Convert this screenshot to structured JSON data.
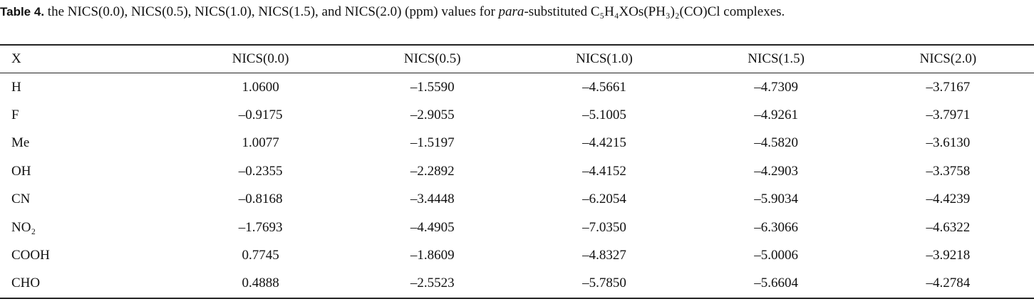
{
  "caption": {
    "label": "Table 4.",
    "text_before": "the NICS(0.0), NICS(0.5), NICS(1.0), NICS(1.5), and NICS(2.0) (ppm) values for ",
    "emphasis": "para",
    "text_after": "-substituted C₅H₄XOs(PH₃)₂(CO)Cl complexes."
  },
  "table": {
    "header": [
      "X",
      "NICS(0.0)",
      "NICS(0.5)",
      "NICS(1.0)",
      "NICS(1.5)",
      "NICS(2.0)"
    ],
    "rows": [
      [
        "H",
        "1.0600",
        "–1.5590",
        "–4.5661",
        "–4.7309",
        "–3.7167"
      ],
      [
        "F",
        "–0.9175",
        "–2.9055",
        "–5.1005",
        "–4.9261",
        "–3.7971"
      ],
      [
        "Me",
        "1.0077",
        "–1.5197",
        "–4.4215",
        "–4.5820",
        "–3.6130"
      ],
      [
        "OH",
        "–0.2355",
        "–2.2892",
        "–4.4152",
        "–4.2903",
        "–3.3758"
      ],
      [
        "CN",
        "–0.8168",
        "–3.4448",
        "–6.2054",
        "–5.9034",
        "–4.4239"
      ],
      [
        "NO₂",
        "–1.7693",
        "–4.4905",
        "–7.0350",
        "–6.3066",
        "–4.6322"
      ],
      [
        "COOH",
        "0.7745",
        "–1.8609",
        "–4.8327",
        "–5.0006",
        "–3.9218"
      ],
      [
        "CHO",
        "0.4888",
        "–2.5523",
        "–5.7850",
        "–5.6604",
        "–4.2784"
      ]
    ]
  }
}
